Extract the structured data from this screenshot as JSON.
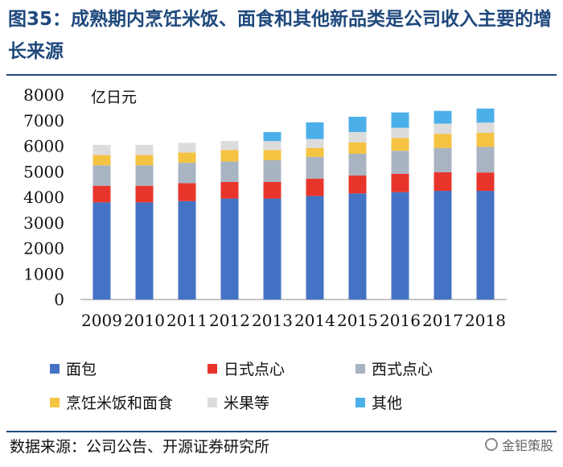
{
  "title": "图35：成熟期内烹饪米饭、面食和其他新品类是公司收入主要的增长来源",
  "source": "数据来源：公司公告、开源证券研究所",
  "watermark": "金钜策股",
  "chart_data": {
    "type": "bar",
    "stacked": true,
    "ylabel": "亿日元",
    "ylim": [
      0,
      8000
    ],
    "yticks": [
      0,
      1000,
      2000,
      3000,
      4000,
      5000,
      6000,
      7000,
      8000
    ],
    "categories": [
      "2009",
      "2010",
      "2011",
      "2012",
      "2013",
      "2014",
      "2015",
      "2016",
      "2017",
      "2018"
    ],
    "series": [
      {
        "name": "面包",
        "color": "#4472c4",
        "values": [
          3800,
          3800,
          3850,
          3950,
          3950,
          4050,
          4150,
          4200,
          4250,
          4250
        ]
      },
      {
        "name": "日式点心",
        "color": "#e8352b",
        "values": [
          650,
          650,
          700,
          650,
          650,
          680,
          700,
          720,
          730,
          720
        ]
      },
      {
        "name": "西式点心",
        "color": "#a8b4c2",
        "values": [
          800,
          800,
          800,
          800,
          850,
          850,
          850,
          900,
          950,
          1000
        ]
      },
      {
        "name": "烹饪米饭和面食",
        "color": "#f5c342",
        "values": [
          400,
          400,
          400,
          450,
          400,
          350,
          450,
          500,
          550,
          550
        ]
      },
      {
        "name": "米果等",
        "color": "#dcdcdc",
        "values": [
          400,
          400,
          380,
          350,
          350,
          350,
          400,
          400,
          400,
          400
        ]
      },
      {
        "name": "其他",
        "color": "#4bafea",
        "values": [
          0,
          0,
          0,
          0,
          350,
          650,
          600,
          600,
          500,
          550
        ]
      }
    ]
  }
}
